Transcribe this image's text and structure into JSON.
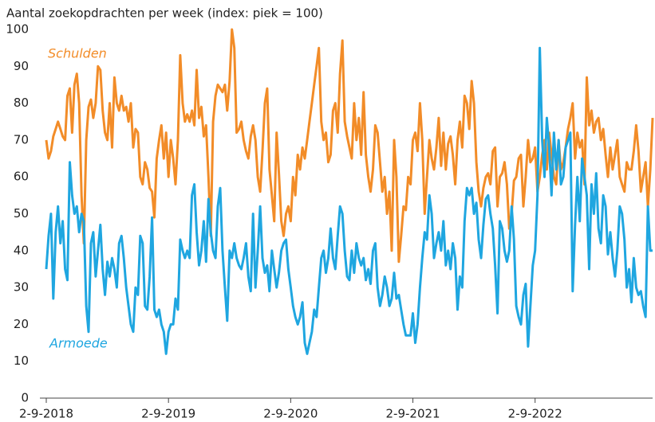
{
  "chart_data": {
    "type": "line",
    "title": "Aantal zoekopdrachten per week (index: piek = 100)",
    "series": [
      {
        "name": "Schulden",
        "color": "#f28c28",
        "values": [
          70,
          65,
          67,
          71,
          73,
          75,
          73,
          71,
          70,
          82,
          84,
          72,
          85,
          88,
          80,
          55,
          42,
          70,
          79,
          81,
          76,
          80,
          90,
          89,
          78,
          72,
          70,
          80,
          68,
          87,
          80,
          78,
          82,
          78,
          79,
          75,
          80,
          68,
          73,
          72,
          60,
          58,
          64,
          62,
          57,
          56,
          49,
          65,
          70,
          74,
          65,
          72,
          60,
          70,
          65,
          58,
          70,
          93,
          80,
          75,
          77,
          75,
          78,
          74,
          89,
          76,
          79,
          71,
          74,
          60,
          44,
          75,
          82,
          85,
          84,
          83,
          85,
          78,
          86,
          100,
          95,
          72,
          73,
          75,
          70,
          67,
          65,
          71,
          74,
          70,
          60,
          56,
          67,
          80,
          84,
          62,
          55,
          48,
          72,
          61,
          48,
          44,
          50,
          52,
          48,
          60,
          55,
          66,
          62,
          68,
          65,
          70,
          75,
          80,
          85,
          90,
          95,
          75,
          70,
          72,
          64,
          66,
          78,
          80,
          72,
          88,
          97,
          75,
          71,
          68,
          65,
          80,
          70,
          76,
          66,
          83,
          66,
          60,
          56,
          62,
          74,
          72,
          64,
          56,
          60,
          50,
          56,
          40,
          70,
          60,
          37,
          44,
          52,
          51,
          60,
          58,
          70,
          72,
          67,
          80,
          70,
          50,
          60,
          70,
          65,
          62,
          68,
          76,
          63,
          72,
          62,
          69,
          71,
          66,
          58,
          70,
          75,
          68,
          82,
          80,
          73,
          86,
          80,
          64,
          56,
          52,
          57,
          60,
          61,
          58,
          67,
          68,
          52,
          60,
          61,
          64,
          58,
          46,
          50,
          59,
          60,
          65,
          66,
          52,
          60,
          70,
          64,
          65,
          68,
          56,
          60,
          66,
          70,
          62,
          72,
          66,
          60,
          58,
          70,
          62,
          64,
          68,
          73,
          76,
          80,
          65,
          72,
          68,
          70,
          58,
          87,
          74,
          78,
          72,
          75,
          76,
          70,
          73,
          66,
          60,
          68,
          62,
          66,
          70,
          60,
          58,
          56,
          64,
          62,
          62,
          67,
          74,
          67,
          56,
          60,
          64,
          52,
          62,
          76
        ]
      },
      {
        "name": "Armoede",
        "color": "#1fa6e0",
        "values": [
          35,
          44,
          50,
          27,
          45,
          52,
          42,
          48,
          35,
          32,
          64,
          55,
          50,
          52,
          45,
          50,
          48,
          25,
          18,
          42,
          45,
          33,
          40,
          47,
          35,
          28,
          37,
          33,
          38,
          35,
          30,
          42,
          44,
          38,
          30,
          25,
          20,
          18,
          30,
          28,
          44,
          42,
          25,
          24,
          33,
          49,
          24,
          22,
          24,
          20,
          18,
          12,
          18,
          20,
          20,
          27,
          24,
          43,
          40,
          38,
          40,
          38,
          55,
          58,
          45,
          36,
          40,
          48,
          37,
          54,
          45,
          40,
          38,
          52,
          57,
          40,
          30,
          21,
          40,
          38,
          42,
          38,
          36,
          35,
          38,
          42,
          33,
          29,
          50,
          30,
          40,
          52,
          38,
          34,
          36,
          29,
          40,
          35,
          30,
          34,
          40,
          42,
          43,
          35,
          30,
          25,
          22,
          20,
          22,
          26,
          15,
          12,
          15,
          18,
          24,
          22,
          30,
          38,
          40,
          34,
          38,
          46,
          38,
          35,
          44,
          52,
          50,
          40,
          33,
          32,
          40,
          34,
          42,
          38,
          36,
          38,
          32,
          35,
          31,
          40,
          42,
          30,
          25,
          28,
          33,
          30,
          25,
          27,
          34,
          27,
          28,
          24,
          20,
          17,
          17,
          17,
          23,
          15,
          20,
          30,
          38,
          45,
          43,
          55,
          50,
          38,
          42,
          45,
          40,
          48,
          36,
          40,
          35,
          42,
          38,
          24,
          33,
          30,
          48,
          57,
          55,
          57,
          50,
          53,
          43,
          38,
          47,
          54,
          55,
          50,
          46,
          36,
          23,
          48,
          46,
          40,
          37,
          40,
          52,
          43,
          25,
          22,
          20,
          28,
          31,
          14,
          25,
          36,
          40,
          55,
          95,
          70,
          60,
          76,
          68,
          55,
          72,
          62,
          70,
          58,
          60,
          68,
          70,
          72,
          29,
          47,
          60,
          48,
          65,
          60,
          55,
          35,
          58,
          50,
          61,
          46,
          42,
          55,
          52,
          39,
          45,
          38,
          33,
          40,
          52,
          50,
          43,
          30,
          35,
          26,
          38,
          30,
          28,
          29,
          25,
          22,
          52,
          40,
          40
        ]
      }
    ],
    "xlim": [
      0,
      258
    ],
    "xticks": [
      {
        "value": 0,
        "label": "2-9-2018"
      },
      {
        "value": 52,
        "label": "2-9-2019"
      },
      {
        "value": 104,
        "label": "2-9-2020"
      },
      {
        "value": 156,
        "label": "2-9-2021"
      },
      {
        "value": 208,
        "label": "2-9-2022"
      }
    ],
    "ylim": [
      0,
      100
    ],
    "yticks": [
      0,
      10,
      20,
      30,
      40,
      50,
      60,
      70,
      80,
      90,
      100
    ],
    "grid": false
  }
}
